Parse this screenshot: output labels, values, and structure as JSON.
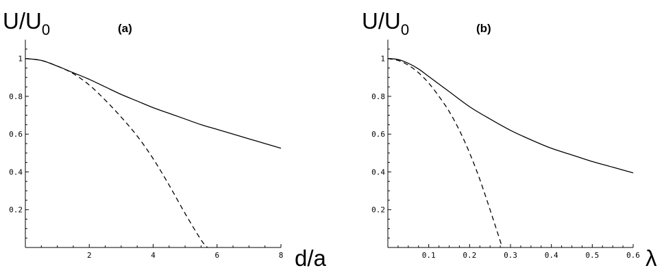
{
  "chart_data": [
    {
      "type": "line",
      "panel_label": "(a)",
      "ylabel_main": "U/U",
      "ylabel_sub": "0",
      "xlabel": "d/a",
      "xlim": [
        0,
        8
      ],
      "ylim": [
        0,
        1.1
      ],
      "xticks": [
        2,
        4,
        6,
        8
      ],
      "yticks": [
        0.2,
        0.4,
        0.6,
        0.8,
        1
      ],
      "series": [
        {
          "style": "solid",
          "x": [
            0,
            0.5,
            1,
            1.5,
            2,
            2.5,
            3,
            3.5,
            4,
            4.5,
            5,
            5.5,
            6,
            6.5,
            7,
            7.5,
            8
          ],
          "y": [
            1.0,
            0.99,
            0.96,
            0.925,
            0.89,
            0.85,
            0.81,
            0.775,
            0.74,
            0.71,
            0.68,
            0.65,
            0.625,
            0.6,
            0.575,
            0.55,
            0.525
          ]
        },
        {
          "style": "dashed",
          "x": [
            0,
            0.5,
            1,
            1.5,
            2,
            2.5,
            3,
            3.5,
            4,
            4.5,
            5,
            5.5,
            5.7
          ],
          "y": [
            1.0,
            0.99,
            0.96,
            0.92,
            0.86,
            0.78,
            0.69,
            0.59,
            0.47,
            0.33,
            0.18,
            0.04,
            0.0
          ]
        }
      ]
    },
    {
      "type": "line",
      "panel_label": "(b)",
      "ylabel_main": "U/U",
      "ylabel_sub": "0",
      "xlabel": "λ",
      "xlim": [
        0,
        0.6
      ],
      "ylim": [
        0,
        1.1
      ],
      "xticks": [
        0.1,
        0.2,
        0.3,
        0.4,
        0.5,
        0.6
      ],
      "yticks": [
        0.2,
        0.4,
        0.6,
        0.8,
        1
      ],
      "series": [
        {
          "style": "solid",
          "x": [
            0,
            0.025,
            0.05,
            0.075,
            0.1,
            0.15,
            0.2,
            0.25,
            0.3,
            0.35,
            0.4,
            0.45,
            0.5,
            0.55,
            0.6
          ],
          "y": [
            1.0,
            0.995,
            0.975,
            0.945,
            0.905,
            0.825,
            0.745,
            0.68,
            0.62,
            0.57,
            0.525,
            0.49,
            0.455,
            0.425,
            0.395
          ]
        },
        {
          "style": "dashed",
          "x": [
            0,
            0.025,
            0.05,
            0.075,
            0.1,
            0.125,
            0.15,
            0.175,
            0.2,
            0.225,
            0.25,
            0.265,
            0.28
          ],
          "y": [
            1.0,
            0.99,
            0.965,
            0.925,
            0.87,
            0.8,
            0.72,
            0.62,
            0.5,
            0.36,
            0.2,
            0.1,
            0.0
          ]
        }
      ]
    }
  ]
}
